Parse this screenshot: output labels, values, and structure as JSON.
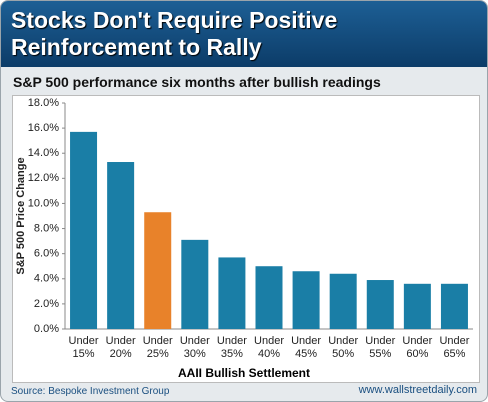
{
  "chart_data": {
    "type": "bar",
    "title": "Stocks Don't Require Positive Reinforcement to Rally",
    "subtitle": "S&P 500 performance six months after bullish readings",
    "y_label": "S&P 500 Price Change",
    "x_label": "AAII Bullish Settlement",
    "source": "Source: Bespoke Investment Group",
    "credit": "www.wallstreetdaily.com",
    "categories": [
      "Under 15%",
      "Under 20%",
      "Under 25%",
      "Under 30%",
      "Under 35%",
      "Under 40%",
      "Under 45%",
      "Under 50%",
      "Under 55%",
      "Under 60%",
      "Under 65%"
    ],
    "values": [
      15.7,
      13.3,
      9.3,
      7.1,
      5.7,
      5.0,
      4.6,
      4.4,
      3.9,
      3.6,
      3.6
    ],
    "colors": [
      "#1a7ea6",
      "#1a7ea6",
      "#e8822a",
      "#1a7ea6",
      "#1a7ea6",
      "#1a7ea6",
      "#1a7ea6",
      "#1a7ea6",
      "#1a7ea6",
      "#1a7ea6",
      "#1a7ea6"
    ],
    "ylim": [
      0,
      18
    ],
    "yticks": [
      {
        "value": 0,
        "label": "0.0%"
      },
      {
        "value": 2,
        "label": "2.0%"
      },
      {
        "value": 4,
        "label": "4.0%"
      },
      {
        "value": 6,
        "label": "6.0%"
      },
      {
        "value": 8,
        "label": "8.0%"
      },
      {
        "value": 10,
        "label": "10.0%"
      },
      {
        "value": 12,
        "label": "12.0%"
      },
      {
        "value": 14,
        "label": "14.0%"
      },
      {
        "value": 16,
        "label": "16.0%"
      },
      {
        "value": 18,
        "label": "18.0%"
      }
    ]
  }
}
